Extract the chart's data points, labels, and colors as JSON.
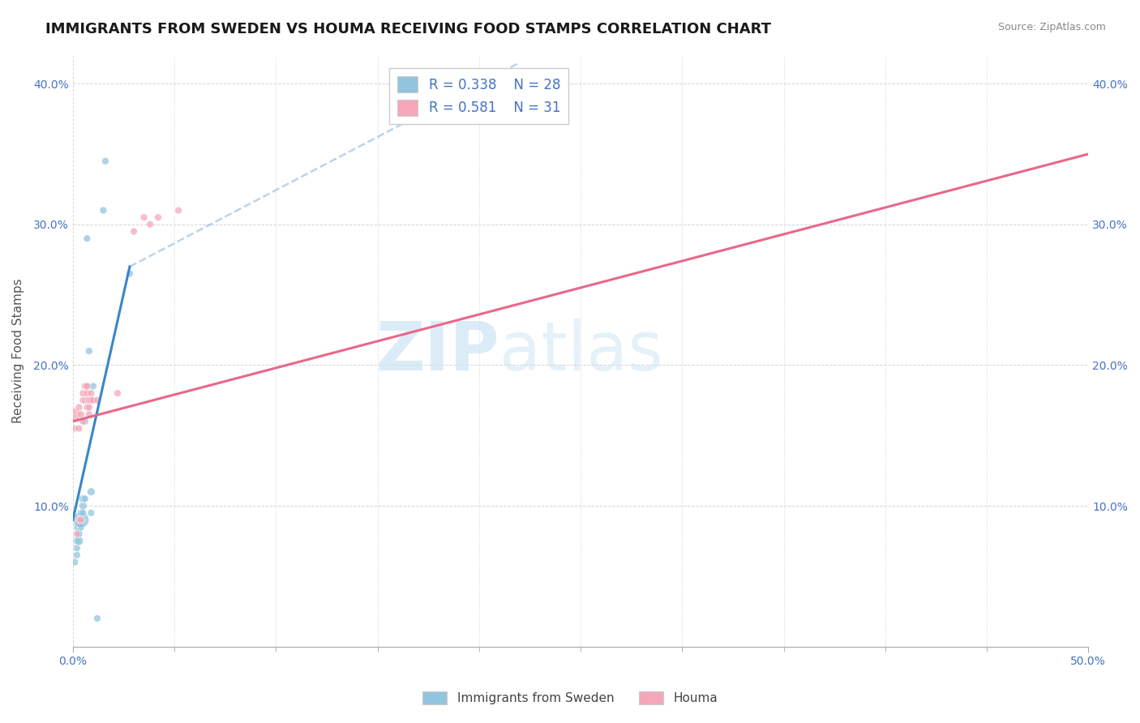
{
  "title": "IMMIGRANTS FROM SWEDEN VS HOUMA RECEIVING FOOD STAMPS CORRELATION CHART",
  "source": "Source: ZipAtlas.com",
  "ylabel": "Receiving Food Stamps",
  "xlim": [
    0.0,
    0.5
  ],
  "ylim": [
    0.0,
    0.42
  ],
  "xticks_major": [
    0.0,
    0.5
  ],
  "xticks_minor": [
    0.05,
    0.1,
    0.15,
    0.2,
    0.25,
    0.3,
    0.35,
    0.4,
    0.45
  ],
  "xtick_labels_major": [
    "0.0%",
    "50.0%"
  ],
  "yticks": [
    0.1,
    0.2,
    0.3,
    0.4
  ],
  "ytick_labels": [
    "10.0%",
    "20.0%",
    "30.0%",
    "40.0%"
  ],
  "blue_color": "#92c5de",
  "pink_color": "#f4a7b9",
  "blue_line_color": "#3a86c8",
  "pink_line_color": "#e8688a",
  "watermark_zip": "ZIP",
  "watermark_atlas": "atlas",
  "background_color": "#ffffff",
  "grid_color": "#d0d0d0",
  "blue_scatter_x": [
    0.001,
    0.002,
    0.002,
    0.002,
    0.003,
    0.003,
    0.003,
    0.003,
    0.004,
    0.004,
    0.004,
    0.004,
    0.005,
    0.005,
    0.005,
    0.006,
    0.006,
    0.006,
    0.007,
    0.007,
    0.008,
    0.009,
    0.009,
    0.01,
    0.012,
    0.015,
    0.016,
    0.028
  ],
  "blue_scatter_y": [
    0.06,
    0.065,
    0.07,
    0.075,
    0.075,
    0.08,
    0.08,
    0.085,
    0.085,
    0.09,
    0.09,
    0.095,
    0.095,
    0.1,
    0.105,
    0.105,
    0.16,
    0.175,
    0.185,
    0.29,
    0.21,
    0.095,
    0.11,
    0.185,
    0.02,
    0.31,
    0.345,
    0.265
  ],
  "blue_scatter_size": [
    40,
    40,
    40,
    50,
    60,
    40,
    40,
    80,
    40,
    200,
    40,
    40,
    40,
    50,
    50,
    40,
    40,
    40,
    40,
    40,
    40,
    40,
    50,
    40,
    40,
    40,
    40,
    40
  ],
  "pink_scatter_x": [
    0.001,
    0.001,
    0.002,
    0.003,
    0.003,
    0.003,
    0.004,
    0.004,
    0.005,
    0.005,
    0.005,
    0.006,
    0.006,
    0.007,
    0.007,
    0.007,
    0.007,
    0.008,
    0.008,
    0.008,
    0.008,
    0.009,
    0.009,
    0.01,
    0.012,
    0.022,
    0.03,
    0.035,
    0.038,
    0.042,
    0.052
  ],
  "pink_scatter_y": [
    0.155,
    0.165,
    0.08,
    0.09,
    0.155,
    0.17,
    0.09,
    0.165,
    0.16,
    0.175,
    0.18,
    0.175,
    0.185,
    0.175,
    0.18,
    0.185,
    0.17,
    0.165,
    0.17,
    0.175,
    0.175,
    0.175,
    0.18,
    0.175,
    0.175,
    0.18,
    0.295,
    0.305,
    0.3,
    0.305,
    0.31
  ],
  "pink_scatter_size": [
    40,
    120,
    40,
    40,
    40,
    40,
    40,
    40,
    40,
    40,
    40,
    40,
    40,
    40,
    40,
    40,
    40,
    40,
    40,
    40,
    40,
    40,
    40,
    40,
    40,
    40,
    40,
    40,
    40,
    40,
    40
  ],
  "blue_trendline_solid": [
    [
      0.0,
      0.09
    ],
    [
      0.028,
      0.27
    ]
  ],
  "blue_trendline_dashed": [
    [
      0.028,
      0.27
    ],
    [
      0.22,
      0.415
    ]
  ],
  "pink_trendline": [
    [
      0.0,
      0.16
    ],
    [
      0.5,
      0.35
    ]
  ],
  "title_fontsize": 13,
  "axis_label_fontsize": 11,
  "tick_fontsize": 10,
  "legend_fontsize": 12
}
